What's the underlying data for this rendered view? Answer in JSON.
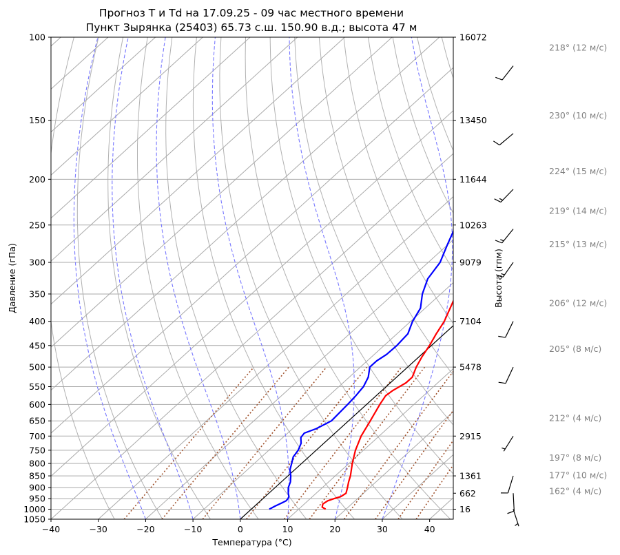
{
  "chart_data": {
    "type": "line",
    "title": "Прогноз T и Td на 17.09.25 - 09 час местного времени",
    "subtitle": "Пункт Зырянка (25403) 65.73 с.ш. 150.90 в.д.; высота 47 м",
    "xlabel": "Температура (°C)",
    "ylabel": "Давление (гПа)",
    "y2label": "Высота (гпм)",
    "xlim": [
      -40,
      45
    ],
    "ylim": [
      1050,
      100
    ],
    "y_scale": "log",
    "x_ticks": [
      "−40",
      "−30",
      "−20",
      "−10",
      "0",
      "10",
      "20",
      "30",
      "40"
    ],
    "x_tick_values": [
      -40,
      -30,
      -20,
      -10,
      0,
      10,
      20,
      30,
      40
    ],
    "y_ticks": [
      "100",
      "150",
      "200",
      "250",
      "300",
      "350",
      "400",
      "450",
      "500",
      "550",
      "600",
      "650",
      "700",
      "750",
      "800",
      "850",
      "900",
      "950",
      "1000",
      "1050"
    ],
    "y_tick_values": [
      100,
      150,
      200,
      250,
      300,
      350,
      400,
      450,
      500,
      550,
      600,
      650,
      700,
      750,
      800,
      850,
      900,
      950,
      1000,
      1050
    ],
    "height_labels": [
      {
        "p": 100,
        "label": "16072"
      },
      {
        "p": 150,
        "label": "13450"
      },
      {
        "p": 200,
        "label": "11644"
      },
      {
        "p": 250,
        "label": "10263"
      },
      {
        "p": 300,
        "label": "9079"
      },
      {
        "p": 400,
        "label": "7104"
      },
      {
        "p": 500,
        "label": "5478"
      },
      {
        "p": 700,
        "label": "2915"
      },
      {
        "p": 850,
        "label": "1361"
      },
      {
        "p": 925,
        "label": "662"
      },
      {
        "p": 1000,
        "label": "16"
      }
    ],
    "series": [
      {
        "color": "#ff0000",
        "p": [
          1000,
          990,
          975,
          960,
          950,
          940,
          925,
          900,
          875,
          850,
          800,
          750,
          700,
          650,
          600,
          575,
          560,
          540,
          525,
          500,
          475,
          450,
          425,
          400,
          350,
          300,
          275,
          250,
          225,
          215,
          210,
          205,
          200,
          195,
          190,
          185,
          180,
          175,
          170,
          165,
          160,
          150,
          140,
          130,
          120,
          110,
          100
        ],
        "t": [
          15.7,
          14.5,
          13.9,
          14.2,
          15.0,
          16.0,
          16.3,
          15.3,
          14.2,
          13.2,
          10.7,
          8.3,
          6.2,
          4.6,
          2.8,
          2.0,
          2.3,
          3.3,
          3.3,
          1.8,
          0.6,
          -0.4,
          -1.7,
          -2.9,
          -6.7,
          -11.0,
          -13.2,
          -15.2,
          -17.5,
          -18.5,
          -18.3,
          -18.2,
          -17.0,
          -15.4,
          -13.8,
          -12.1,
          -10.4,
          -8.7,
          -6.2,
          -4.3,
          -3.2,
          -1.0,
          1.5,
          3.5,
          6.0,
          9.0,
          12.0
        ]
      },
      {
        "color": "#0000ff",
        "p": [
          1000,
          985,
          970,
          960,
          950,
          940,
          925,
          900,
          875,
          850,
          825,
          800,
          775,
          750,
          725,
          705,
          690,
          675,
          650,
          600,
          575,
          550,
          525,
          500,
          485,
          470,
          450,
          425,
          400,
          375,
          350,
          325,
          300,
          275,
          250,
          225,
          215,
          210,
          205,
          200,
          195,
          190,
          180,
          170,
          160,
          150,
          140,
          130,
          120,
          110,
          100
        ],
        "t": [
          3.8,
          4.3,
          5.0,
          5.4,
          5.3,
          5.0,
          4.1,
          2.8,
          1.9,
          0.6,
          -1.0,
          -2.1,
          -3.3,
          -3.8,
          -4.8,
          -6.2,
          -6.5,
          -5.0,
          -3.6,
          -4.0,
          -4.3,
          -4.8,
          -6.0,
          -8.0,
          -8.0,
          -7.4,
          -7.3,
          -7.7,
          -9.6,
          -11.0,
          -13.9,
          -16.3,
          -17.5,
          -20.1,
          -22.8,
          -24.5,
          -24.5,
          -24.2,
          -23.6,
          -23.0,
          -23.3,
          -23.0,
          -22.1,
          -20.5,
          -19.5,
          -18.0,
          -16.6,
          -15.0,
          -13.0,
          -11.0,
          -9.5
        ]
      }
    ],
    "winds": [
      {
        "p": 115,
        "label": "218° (12 м/с)"
      },
      {
        "p": 160,
        "label": "230° (10 м/с)"
      },
      {
        "p": 210,
        "label": "224° (15 м/с)"
      },
      {
        "p": 255,
        "label": "219° (14 м/с)"
      },
      {
        "p": 300,
        "label": "215° (13 м/с)"
      },
      {
        "p": 400,
        "label": "206° (12 м/с)"
      },
      {
        "p": 500,
        "label": "205° (8 м/с)"
      },
      {
        "p": 700,
        "label": "212° (4 м/с)"
      },
      {
        "p": 850,
        "label": "197° (8 м/с)"
      },
      {
        "p": 925,
        "label": "177° (10 м/с)"
      },
      {
        "p": 1000,
        "label": "162° (4 м/с)"
      }
    ],
    "colors": {
      "temperature": "#ff0000",
      "dewpoint": "#0000ff",
      "dry_adiabats": "#a9a9a9",
      "moist_adiabats": "#7777ff",
      "mixing_ratio": "#a0522d",
      "isotherm_0": "#000000",
      "wind_text": "#808080"
    },
    "background_lines": {
      "dry_adiabats": true,
      "moist_adiabats": true,
      "mixing_ratio_lines": true,
      "zero_isotherm": true,
      "grid": true
    }
  }
}
